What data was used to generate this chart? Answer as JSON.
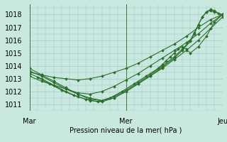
{
  "title": "Pression niveau de la mer( hPa )",
  "bg_color": "#c8e8e0",
  "grid_color": "#a0c8c0",
  "line_color": "#2d6e2d",
  "xlim": [
    0,
    48
  ],
  "ylim": [
    1010.5,
    1018.8
  ],
  "yticks": [
    1011,
    1012,
    1013,
    1014,
    1015,
    1016,
    1017,
    1018
  ],
  "xtick_labels": [
    "Mar",
    "Mer",
    "Jeu"
  ],
  "xtick_pos": [
    0,
    24,
    48
  ],
  "series": [
    {
      "x": [
        0,
        3,
        6,
        9,
        12,
        15,
        18,
        21,
        24,
        27,
        30,
        33,
        36,
        39,
        42,
        45,
        48
      ],
      "y": [
        1013.5,
        1013.3,
        1013.1,
        1013.0,
        1012.9,
        1013.0,
        1013.2,
        1013.5,
        1013.8,
        1014.2,
        1014.7,
        1015.2,
        1015.7,
        1016.3,
        1017.0,
        1017.6,
        1018.0
      ]
    },
    {
      "x": [
        0,
        3,
        6,
        9,
        12,
        15,
        18,
        21,
        24,
        27,
        30,
        33,
        36,
        39,
        42,
        45,
        48
      ],
      "y": [
        1013.2,
        1012.8,
        1012.5,
        1012.2,
        1011.9,
        1011.8,
        1012.0,
        1012.4,
        1012.9,
        1013.4,
        1014.0,
        1014.6,
        1015.2,
        1015.8,
        1016.5,
        1017.3,
        1018.0
      ]
    },
    {
      "x": [
        0,
        3,
        6,
        9,
        12,
        15,
        18,
        21,
        24,
        27,
        30,
        33,
        36,
        39,
        42,
        45,
        48
      ],
      "y": [
        1013.8,
        1013.3,
        1012.8,
        1012.3,
        1011.8,
        1011.4,
        1011.3,
        1011.5,
        1012.0,
        1012.6,
        1013.2,
        1013.8,
        1014.5,
        1015.2,
        1016.0,
        1016.9,
        1017.8
      ]
    },
    {
      "x": [
        0,
        3,
        6,
        9,
        12,
        15,
        18,
        21,
        24,
        27,
        30,
        33,
        36,
        38,
        40,
        41,
        42,
        43,
        44,
        45,
        46,
        47,
        48
      ],
      "y": [
        1013.6,
        1013.2,
        1012.7,
        1012.2,
        1011.8,
        1011.5,
        1011.3,
        1011.6,
        1012.1,
        1012.7,
        1013.3,
        1014.0,
        1014.7,
        1015.3,
        1016.0,
        1016.6,
        1017.2,
        1017.8,
        1018.2,
        1018.4,
        1018.3,
        1018.1,
        1017.9
      ]
    },
    {
      "x": [
        0,
        3,
        6,
        9,
        12,
        15,
        18,
        21,
        24,
        27,
        30,
        33,
        36,
        38,
        40,
        41,
        42,
        43,
        44,
        45,
        46,
        48
      ],
      "y": [
        1013.4,
        1013.0,
        1012.5,
        1012.0,
        1011.6,
        1011.3,
        1011.2,
        1011.5,
        1012.0,
        1012.6,
        1013.2,
        1013.9,
        1014.6,
        1015.2,
        1015.9,
        1016.5,
        1017.2,
        1017.8,
        1018.2,
        1018.3,
        1018.2,
        1018.0
      ]
    },
    {
      "x": [
        2,
        5,
        8,
        11,
        14,
        17,
        20,
        23,
        26,
        29,
        32,
        33,
        34,
        35,
        36,
        37,
        38,
        39,
        40,
        42,
        44,
        46,
        48
      ],
      "y": [
        1013.1,
        1012.6,
        1012.1,
        1011.7,
        1011.4,
        1011.2,
        1011.5,
        1012.0,
        1012.6,
        1013.2,
        1013.8,
        1014.1,
        1014.4,
        1014.7,
        1015.0,
        1015.3,
        1015.5,
        1015.3,
        1015.0,
        1015.5,
        1016.3,
        1017.4,
        1018.0
      ]
    }
  ]
}
